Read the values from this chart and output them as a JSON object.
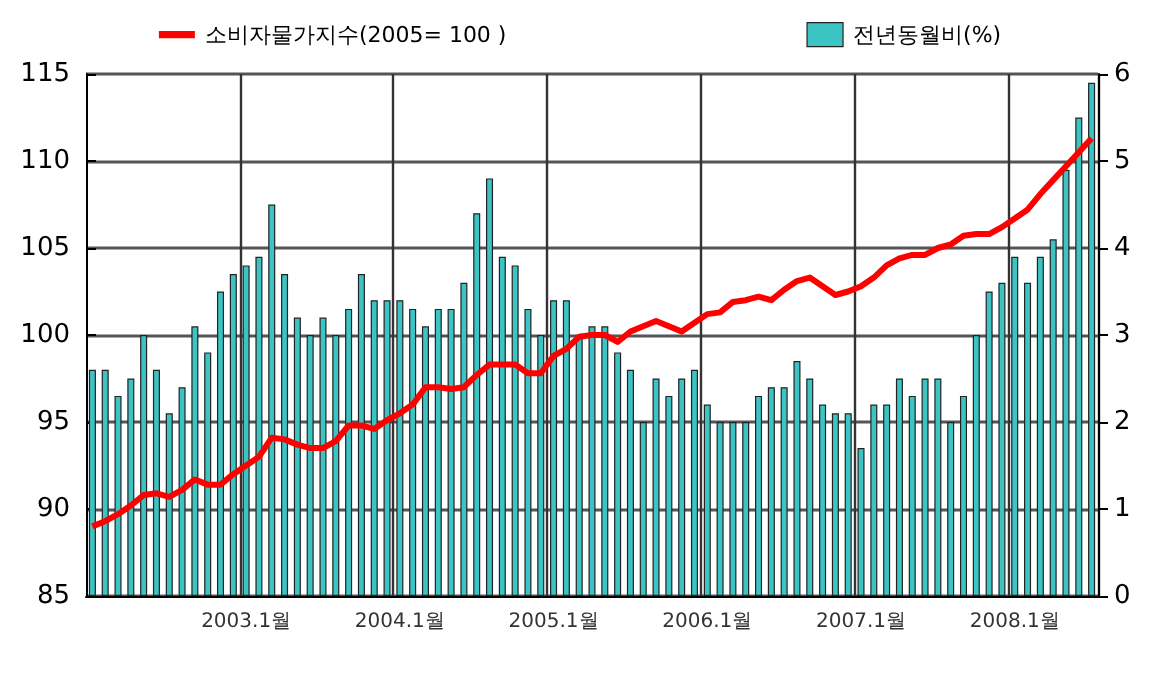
{
  "chart_data": {
    "type": "bar",
    "categories": [
      null,
      null,
      null,
      null,
      null,
      null,
      null,
      null,
      null,
      null,
      null,
      null,
      "2003.1월",
      null,
      null,
      null,
      null,
      null,
      null,
      null,
      null,
      null,
      null,
      null,
      "2004.1월",
      null,
      null,
      null,
      null,
      null,
      null,
      null,
      null,
      null,
      null,
      null,
      "2005.1월",
      null,
      null,
      null,
      null,
      null,
      null,
      null,
      null,
      null,
      null,
      null,
      "2006.1월",
      null,
      null,
      null,
      null,
      null,
      null,
      null,
      null,
      null,
      null,
      null,
      "2007.1월",
      null,
      null,
      null,
      null,
      null,
      null,
      null,
      null,
      null,
      null,
      null,
      "2008.1월",
      null,
      null,
      null,
      null,
      null,
      null
    ],
    "series": [
      {
        "name": "소비자물가지수(2005= 100 )",
        "type": "line",
        "color": "#ff0000",
        "values": [
          89.0,
          89.3,
          89.7,
          90.2,
          90.8,
          90.9,
          90.7,
          91.1,
          91.7,
          91.4,
          91.4,
          92.0,
          92.5,
          93.0,
          94.1,
          94.0,
          93.7,
          93.5,
          93.5,
          93.9,
          94.8,
          94.8,
          94.6,
          95.1,
          95.5,
          96.0,
          97.0,
          97.0,
          96.9,
          97.0,
          97.7,
          98.3,
          98.3,
          98.3,
          97.8,
          97.8,
          98.8,
          99.2,
          99.9,
          100.0,
          100.0,
          99.6,
          100.2,
          100.5,
          100.8,
          100.5,
          100.2,
          100.7,
          101.2,
          101.3,
          101.9,
          102.0,
          102.2,
          102.0,
          102.6,
          103.1,
          103.3,
          102.8,
          102.3,
          102.5,
          102.8,
          103.3,
          104.0,
          104.4,
          104.6,
          104.6,
          105.0,
          105.2,
          105.7,
          105.8,
          105.8,
          106.2,
          106.7,
          107.2,
          108.1,
          108.9,
          109.7,
          110.5,
          111.3
        ]
      },
      {
        "name": "전년동월비(%)",
        "axis": "y2",
        "color": "#3cc4c4",
        "values": [
          2.6,
          2.6,
          2.3,
          2.5,
          3.0,
          2.6,
          2.1,
          2.4,
          3.1,
          2.8,
          3.5,
          3.7,
          3.8,
          3.9,
          4.5,
          3.7,
          3.2,
          3.0,
          3.2,
          3.0,
          3.3,
          3.7,
          3.4,
          3.4,
          3.4,
          3.3,
          3.1,
          3.3,
          3.3,
          3.6,
          4.4,
          4.8,
          3.9,
          3.8,
          3.3,
          3.0,
          3.4,
          3.4,
          3.0,
          3.1,
          3.1,
          2.8,
          2.6,
          2.0,
          2.5,
          2.3,
          2.5,
          2.6,
          2.2,
          2.0,
          2.0,
          2.0,
          2.3,
          2.4,
          2.4,
          2.7,
          2.5,
          2.2,
          2.1,
          2.1,
          1.7,
          2.2,
          2.2,
          2.5,
          2.3,
          2.5,
          2.5,
          2.0,
          2.3,
          3.0,
          3.5,
          3.6,
          3.9,
          3.6,
          3.9,
          4.1,
          4.9,
          5.5,
          5.9
        ]
      }
    ],
    "ylim": [
      85,
      115
    ],
    "yticks": [
      85,
      90,
      95,
      100,
      105,
      110,
      115
    ],
    "y2lim": [
      0,
      6
    ],
    "y2ticks": [
      0,
      1,
      2,
      3,
      4,
      5,
      6
    ],
    "grid": true,
    "legend": "top",
    "marker": "none"
  }
}
